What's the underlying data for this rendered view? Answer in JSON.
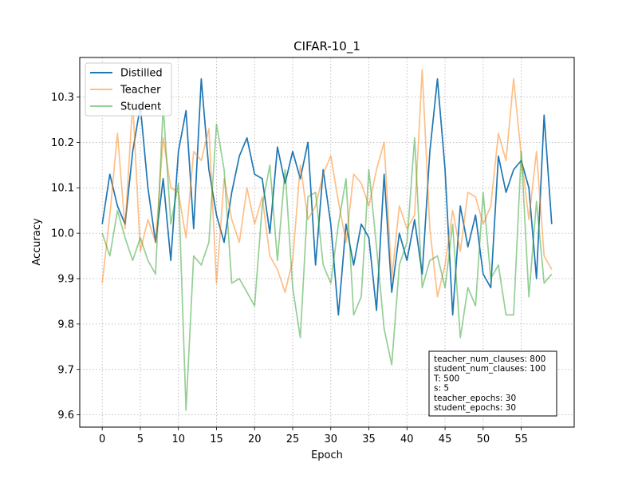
{
  "chart_data": {
    "type": "line",
    "title": "CIFAR-10_1",
    "xlabel": "Epoch",
    "ylabel": "Accuracy",
    "xlim": [
      -2.95,
      61.95
    ],
    "ylim": [
      9.573,
      10.387
    ],
    "xticks": [
      0,
      5,
      10,
      15,
      20,
      25,
      30,
      35,
      40,
      45,
      50,
      55
    ],
    "yticks": [
      9.6,
      9.7,
      9.8,
      9.9,
      10.0,
      10.1,
      10.2,
      10.3
    ],
    "ytick_labels": [
      "9.6",
      "9.7",
      "9.8",
      "9.9",
      "10.0",
      "10.1",
      "10.2",
      "10.3"
    ],
    "grid": true,
    "legend_position": "top-left",
    "x": [
      0,
      1,
      2,
      3,
      4,
      5,
      6,
      7,
      8,
      9,
      10,
      11,
      12,
      13,
      14,
      15,
      16,
      17,
      18,
      19,
      20,
      21,
      22,
      23,
      24,
      25,
      26,
      27,
      28,
      29,
      30,
      31,
      32,
      33,
      34,
      35,
      36,
      37,
      38,
      39,
      40,
      41,
      42,
      43,
      44,
      45,
      46,
      47,
      48,
      49,
      50,
      51,
      52,
      53,
      54,
      55,
      56,
      57,
      58,
      59
    ],
    "series": [
      {
        "name": "Distilled",
        "color": "#1f77b4",
        "alpha": 1.0,
        "values": [
          10.02,
          10.13,
          10.06,
          10.02,
          10.18,
          10.28,
          10.1,
          9.98,
          10.12,
          9.94,
          10.18,
          10.27,
          10.01,
          10.34,
          10.14,
          10.04,
          9.98,
          10.09,
          10.17,
          10.21,
          10.13,
          10.12,
          10.0,
          10.19,
          10.11,
          10.18,
          10.12,
          10.2,
          9.93,
          10.14,
          10.02,
          9.82,
          10.02,
          9.93,
          10.02,
          9.99,
          9.83,
          10.13,
          9.87,
          10.0,
          9.94,
          10.03,
          9.91,
          10.18,
          10.34,
          10.14,
          9.82,
          10.06,
          9.97,
          10.04,
          9.91,
          9.88,
          10.17,
          10.09,
          10.14,
          10.16,
          10.1,
          9.9,
          10.26,
          10.02
        ]
      },
      {
        "name": "Teacher",
        "color": "#ff7f0e",
        "alpha": 0.5,
        "values": [
          9.89,
          10.04,
          10.22,
          10.01,
          10.29,
          9.96,
          10.03,
          9.98,
          10.21,
          10.1,
          10.09,
          9.99,
          10.18,
          10.16,
          10.23,
          9.89,
          10.12,
          10.03,
          9.98,
          10.1,
          10.02,
          10.08,
          9.95,
          9.92,
          9.87,
          9.94,
          10.15,
          10.03,
          10.06,
          10.13,
          10.17,
          10.07,
          9.98,
          10.13,
          10.11,
          10.06,
          10.14,
          10.2,
          9.9,
          10.06,
          10.01,
          10.04,
          10.36,
          10.01,
          9.86,
          9.93,
          10.05,
          9.96,
          10.09,
          10.08,
          10.02,
          10.06,
          10.22,
          10.16,
          10.34,
          10.17,
          10.03,
          10.18,
          9.95,
          9.92
        ]
      },
      {
        "name": "Student",
        "color": "#2ca02c",
        "alpha": 0.5,
        "values": [
          10.0,
          9.95,
          10.05,
          9.99,
          9.94,
          9.99,
          9.94,
          9.91,
          10.28,
          10.02,
          10.11,
          9.61,
          9.95,
          9.93,
          9.98,
          10.24,
          10.14,
          9.89,
          9.9,
          9.87,
          9.84,
          10.06,
          10.15,
          9.94,
          10.14,
          9.88,
          9.77,
          10.08,
          10.09,
          9.93,
          9.89,
          10.02,
          10.12,
          9.82,
          9.86,
          10.14,
          9.97,
          9.79,
          9.71,
          9.93,
          9.98,
          10.21,
          9.88,
          9.94,
          9.95,
          9.88,
          10.02,
          9.77,
          9.88,
          9.84,
          10.09,
          9.9,
          9.93,
          9.82,
          9.82,
          10.18,
          9.86,
          10.07,
          9.89,
          9.91
        ]
      }
    ],
    "info_box": [
      "teacher_num_clauses: 800",
      "student_num_clauses: 100",
      "T: 500",
      "s: 5",
      "teacher_epochs: 30",
      "student_epochs: 30"
    ]
  }
}
